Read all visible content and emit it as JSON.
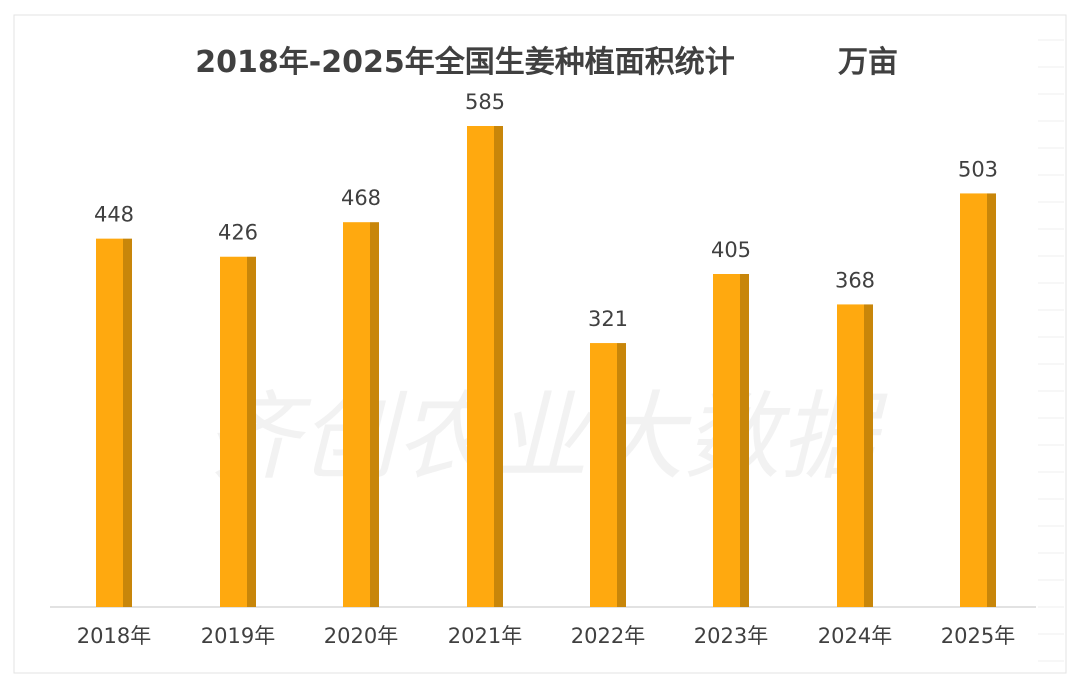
{
  "chart_data": {
    "type": "bar",
    "title": "2018年-2025年全国生姜种植面积统计",
    "unit": "万亩",
    "categories": [
      "2018年",
      "2019年",
      "2020年",
      "2021年",
      "2022年",
      "2023年",
      "2024年",
      "2025年"
    ],
    "values": [
      448,
      426,
      468,
      585,
      321,
      405,
      368,
      503
    ],
    "ylim": [
      0,
      585
    ],
    "grid": false,
    "legend": "none",
    "data_labels": true,
    "colors": {
      "bar": "#FFA90F",
      "bar_side": "#C8860A",
      "axis": "#d9d9d9",
      "text": "#404040"
    }
  },
  "watermark": "齐创农业大数据"
}
